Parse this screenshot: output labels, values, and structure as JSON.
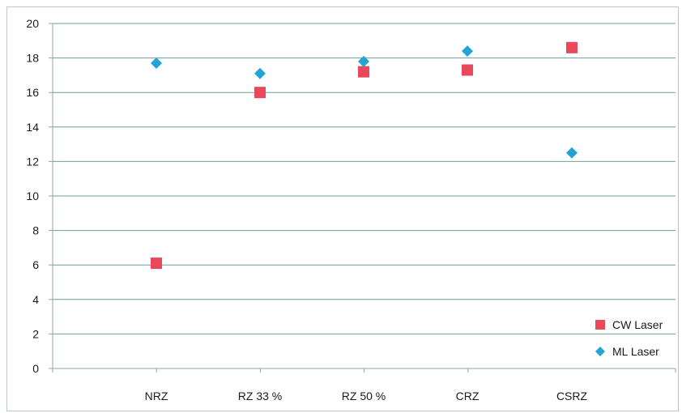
{
  "chart_data": {
    "type": "scatter",
    "categories": [
      "NRZ",
      "RZ 33 %",
      "RZ 50 %",
      "CRZ",
      "CSRZ"
    ],
    "series": [
      {
        "name": "CW Laser",
        "marker": "square",
        "color": "#e8485a",
        "values": [
          6.1,
          16.0,
          17.2,
          17.3,
          18.6
        ]
      },
      {
        "name": "ML Laser",
        "marker": "diamond",
        "color": "#23a3d6",
        "values": [
          17.7,
          17.1,
          17.8,
          18.4,
          12.5
        ]
      }
    ],
    "ylim": [
      0,
      20
    ],
    "yticks": [
      0,
      2,
      4,
      6,
      8,
      10,
      12,
      14,
      16,
      18,
      20
    ],
    "grid": true,
    "gridline_color": "#6f9c9c",
    "legend_position": "bottom-right"
  }
}
